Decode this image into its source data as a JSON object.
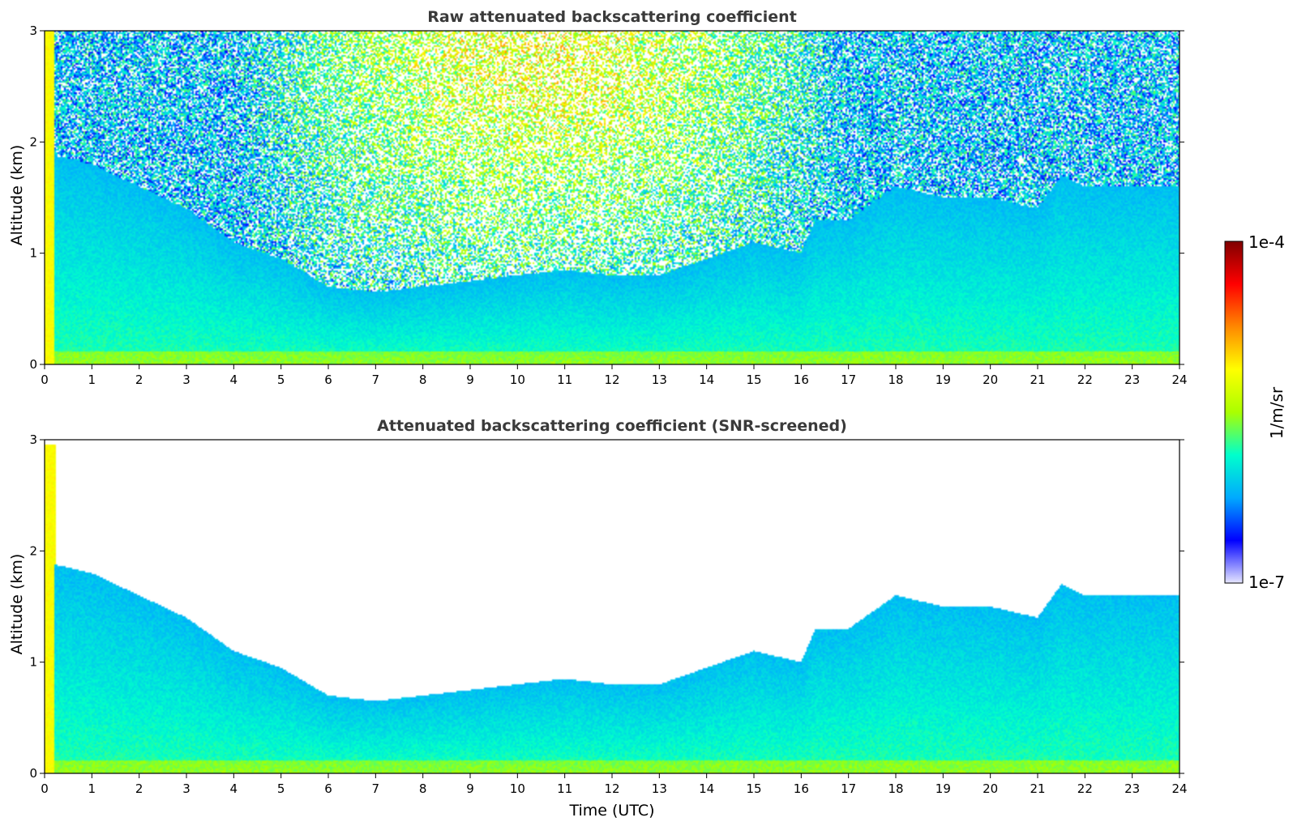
{
  "chart_data": [
    {
      "type": "heatmap",
      "title": "Raw attenuated backscattering coefficient",
      "xlabel": "",
      "ylabel": "Altitude (km)",
      "xlim": [
        0,
        24
      ],
      "ylim": [
        0,
        3
      ],
      "xticks": [
        "0",
        "1",
        "2",
        "3",
        "4",
        "5",
        "6",
        "7",
        "8",
        "9",
        "10",
        "11",
        "12",
        "13",
        "14",
        "15",
        "16",
        "17",
        "18",
        "19",
        "20",
        "21",
        "22",
        "23",
        "24"
      ],
      "yticks": [
        "0",
        "1",
        "2",
        "3"
      ],
      "screened": false,
      "boundary_layer_top_km": [
        [
          0,
          1.9
        ],
        [
          1,
          1.8
        ],
        [
          2,
          1.6
        ],
        [
          3,
          1.4
        ],
        [
          4,
          1.1
        ],
        [
          5,
          0.95
        ],
        [
          6,
          0.7
        ],
        [
          7,
          0.65
        ],
        [
          8,
          0.7
        ],
        [
          9,
          0.75
        ],
        [
          10,
          0.8
        ],
        [
          11,
          0.85
        ],
        [
          12,
          0.8
        ],
        [
          13,
          0.8
        ],
        [
          14,
          0.95
        ],
        [
          15,
          1.1
        ],
        [
          16,
          1.0
        ],
        [
          16.3,
          1.3
        ],
        [
          17,
          1.3
        ],
        [
          18,
          1.6
        ],
        [
          19,
          1.5
        ],
        [
          20,
          1.5
        ],
        [
          21,
          1.4
        ],
        [
          21.5,
          1.7
        ],
        [
          22,
          1.6
        ],
        [
          23,
          1.6
        ],
        [
          24,
          1.6
        ]
      ]
    },
    {
      "type": "heatmap",
      "title": "Attenuated backscattering coefficient (SNR-screened)",
      "xlabel": "Time (UTC)",
      "ylabel": "Altitude (km)",
      "xlim": [
        0,
        24
      ],
      "ylim": [
        0,
        3
      ],
      "xticks": [
        "0",
        "1",
        "2",
        "3",
        "4",
        "5",
        "6",
        "7",
        "8",
        "9",
        "10",
        "11",
        "12",
        "13",
        "14",
        "15",
        "16",
        "17",
        "18",
        "19",
        "20",
        "21",
        "22",
        "23",
        "24"
      ],
      "yticks": [
        "0",
        "1",
        "2",
        "3"
      ],
      "screened": true,
      "boundary_layer_top_km": [
        [
          0,
          1.9
        ],
        [
          1,
          1.8
        ],
        [
          2,
          1.6
        ],
        [
          3,
          1.4
        ],
        [
          4,
          1.1
        ],
        [
          5,
          0.95
        ],
        [
          6,
          0.7
        ],
        [
          7,
          0.65
        ],
        [
          8,
          0.7
        ],
        [
          9,
          0.75
        ],
        [
          10,
          0.8
        ],
        [
          11,
          0.85
        ],
        [
          12,
          0.8
        ],
        [
          13,
          0.8
        ],
        [
          14,
          0.95
        ],
        [
          15,
          1.1
        ],
        [
          16,
          1.0
        ],
        [
          16.3,
          1.3
        ],
        [
          17,
          1.3
        ],
        [
          18,
          1.6
        ],
        [
          19,
          1.5
        ],
        [
          20,
          1.5
        ],
        [
          21,
          1.4
        ],
        [
          21.5,
          1.7
        ],
        [
          22,
          1.6
        ],
        [
          23,
          1.6
        ],
        [
          24,
          1.6
        ]
      ]
    }
  ],
  "colorbar": {
    "label": "1/m/sr",
    "min_label": "1e-7",
    "max_label": "1e-4",
    "scale": "log",
    "colormap": "jet",
    "colors": [
      "#e6e6ff",
      "#0000ff",
      "#00aaff",
      "#00ffcc",
      "#aaff00",
      "#ffff00",
      "#ff8800",
      "#ff0000",
      "#800000"
    ]
  }
}
